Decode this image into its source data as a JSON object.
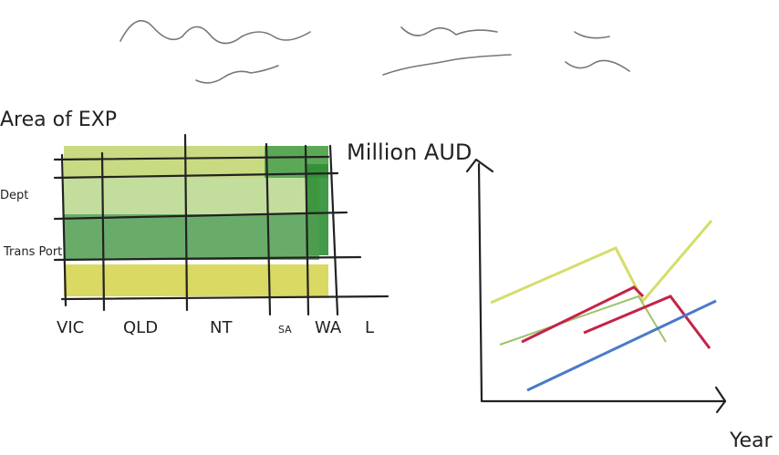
{
  "heatmap": {
    "y_label": "Area of EXP",
    "rows": [
      "Dept",
      "Trans Port"
    ],
    "columns": [
      "VIC",
      "QLD",
      "NT",
      "SA",
      "WA",
      "L"
    ],
    "legend_label": "Million AUD"
  },
  "line_chart": {
    "x_label": "Year"
  }
}
